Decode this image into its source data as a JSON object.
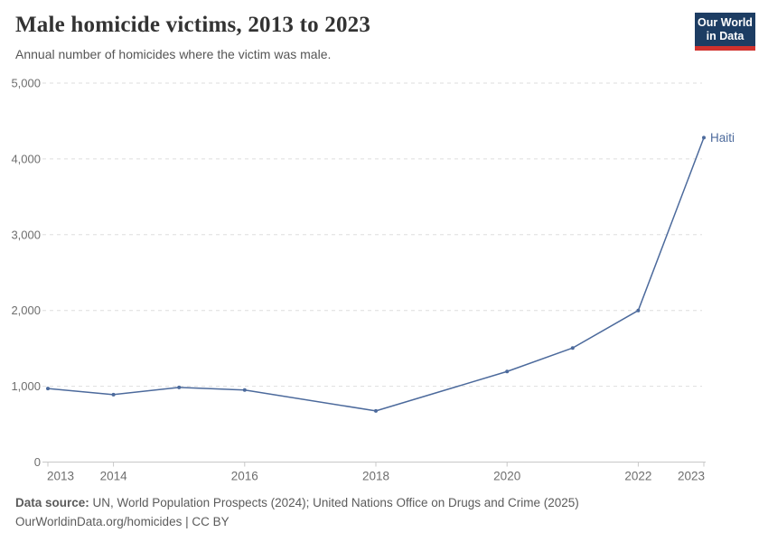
{
  "header": {
    "title": "Male homicide victims, 2013 to 2023",
    "subtitle": "Annual number of homicides where the victim was male.",
    "logo": {
      "line1": "Our World",
      "line2": "in Data",
      "bg_color": "#1d3d63",
      "accent_color": "#d0312d"
    }
  },
  "chart_data": {
    "type": "line",
    "title": "Male homicide victims, 2013 to 2023",
    "subtitle": "Annual number of homicides where the victim was male.",
    "series": [
      {
        "name": "Haiti",
        "color": "#4c6a9c",
        "x": [
          2013,
          2014,
          2015,
          2016,
          2018,
          2020,
          2021,
          2022,
          2023
        ],
        "values": [
          970,
          890,
          985,
          950,
          675,
          1195,
          1505,
          2000,
          4280
        ]
      }
    ],
    "x_ticks": [
      2013,
      2014,
      2016,
      2018,
      2020,
      2022,
      2023
    ],
    "y_ticks": [
      0,
      1000,
      2000,
      3000,
      4000,
      5000
    ],
    "y_tick_labels": [
      "0",
      "1,000",
      "2,000",
      "3,000",
      "4,000",
      "5,000"
    ],
    "xlim": [
      2013,
      2023
    ],
    "ylim": [
      0,
      5000
    ],
    "grid": "horizontal-dashed",
    "legend_position": "end-of-line-label",
    "end_label": "Haiti"
  },
  "footer": {
    "datasource_label": "Data source:",
    "datasource_text": " UN, World Population Prospects (2024); United Nations Office on Drugs and Crime (2025)",
    "link_text": "OurWorldinData.org/homicides",
    "license_suffix": " | CC BY"
  }
}
